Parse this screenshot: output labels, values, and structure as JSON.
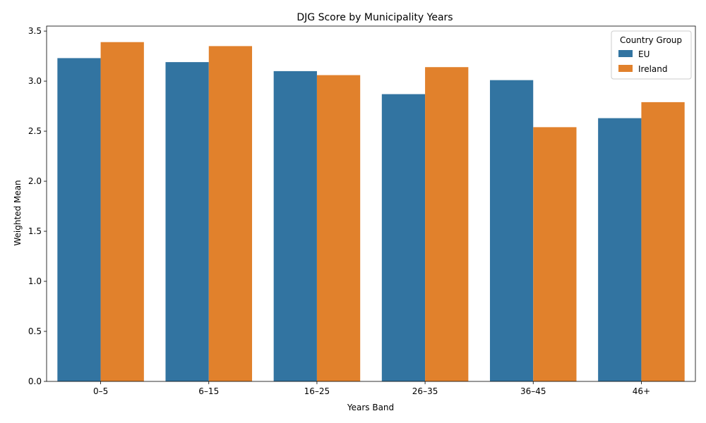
{
  "colors": {
    "eu": "#3274a1",
    "ireland": "#e1812c"
  },
  "chart_data": {
    "type": "bar",
    "title": "DJG Score by Municipality Years",
    "xlabel": "Years Band",
    "ylabel": "Weighted Mean",
    "categories": [
      "0–5",
      "6–15",
      "16–25",
      "26–35",
      "36–45",
      "46+"
    ],
    "series": [
      {
        "name": "EU",
        "values": [
          3.23,
          3.19,
          3.1,
          2.87,
          3.01,
          2.63
        ]
      },
      {
        "name": "Ireland",
        "values": [
          3.39,
          3.35,
          3.06,
          3.14,
          2.54,
          2.79
        ]
      }
    ],
    "ylim": [
      0,
      3.55
    ],
    "yticks": [
      "0.0",
      "0.5",
      "1.0",
      "1.5",
      "2.0",
      "2.5",
      "3.0",
      "3.5"
    ],
    "legend": {
      "title": "Country Group",
      "position": "top-right"
    },
    "grid": false
  }
}
